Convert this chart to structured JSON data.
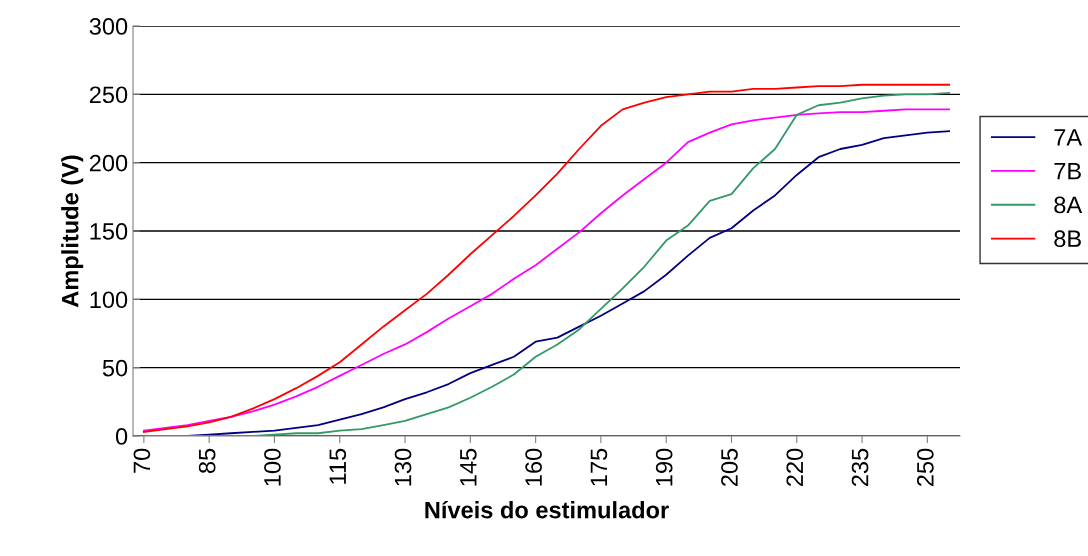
{
  "chart_data": {
    "type": "line",
    "xlabel": "Níveis do estimulador",
    "ylabel": "Amplitude (V)",
    "x": [
      70,
      75,
      80,
      85,
      90,
      95,
      100,
      105,
      110,
      115,
      120,
      125,
      130,
      135,
      140,
      145,
      150,
      155,
      160,
      165,
      170,
      175,
      180,
      185,
      190,
      195,
      200,
      205,
      210,
      215,
      220,
      225,
      230,
      235,
      240,
      245,
      250,
      255
    ],
    "series": [
      {
        "name": "7A",
        "color": "#000080",
        "values": [
          0,
          0,
          0,
          1,
          2,
          3,
          4,
          6,
          8,
          12,
          16,
          21,
          27,
          32,
          38,
          46,
          52,
          58,
          69,
          72,
          80,
          88,
          97,
          106,
          118,
          132,
          145,
          152,
          165,
          176,
          191,
          204,
          210,
          213,
          218,
          220,
          222,
          223
        ]
      },
      {
        "name": "7B",
        "color": "#ff00ff",
        "values": [
          4,
          6,
          8,
          11,
          14,
          18,
          23,
          29,
          36,
          44,
          52,
          60,
          67,
          76,
          86,
          95,
          104,
          115,
          125,
          137,
          149,
          163,
          176,
          188,
          200,
          215,
          222,
          228,
          231,
          233,
          235,
          236,
          237,
          237,
          238,
          239,
          239,
          239
        ]
      },
      {
        "name": "8A",
        "color": "#339966",
        "values": [
          0,
          0,
          0,
          0,
          0,
          0,
          1,
          2,
          2,
          4,
          5,
          8,
          11,
          16,
          21,
          28,
          36,
          45,
          58,
          67,
          78,
          93,
          108,
          124,
          143,
          154,
          172,
          177,
          196,
          210,
          235,
          242,
          244,
          247,
          249,
          250,
          250,
          251
        ]
      },
      {
        "name": "8B",
        "color": "#ff0000",
        "values": [
          3,
          5,
          7,
          10,
          14,
          20,
          27,
          35,
          44,
          54,
          67,
          80,
          92,
          104,
          118,
          133,
          147,
          161,
          176,
          192,
          210,
          227,
          239,
          244,
          248,
          250,
          252,
          252,
          254,
          254,
          255,
          256,
          256,
          257,
          257,
          257,
          257,
          257
        ]
      }
    ],
    "xlim": [
      67.5,
      257.5
    ],
    "xticks": [
      70,
      85,
      100,
      115,
      130,
      145,
      160,
      175,
      190,
      205,
      220,
      235,
      250
    ],
    "ylim": [
      0,
      300
    ],
    "yticks": [
      0,
      50,
      100,
      150,
      200,
      250,
      300
    ],
    "grid": "y",
    "legend": "right",
    "marker": "none",
    "line_style": "solid"
  }
}
